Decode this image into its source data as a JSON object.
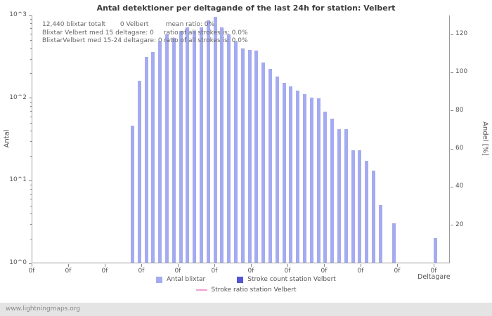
{
  "title": "Antal detektioner per deltagande of the last 24h for station: Velbert",
  "watermark": "www.lightningmaps.org",
  "axes": {
    "left_label": "Antal",
    "right_label": "Andel [%]",
    "x_label": "Deltagare",
    "left_ticks": [
      "10^0",
      "10^1",
      "10^2",
      "10^3"
    ],
    "right_ticks": [
      20,
      40,
      60,
      80,
      100,
      120
    ],
    "x_tick_label": "0f",
    "x_tick_count": 12
  },
  "annotation": {
    "l1a": "12,440 blixtar totalt",
    "l1b": "0 Velbert",
    "l1c": "mean ratio: 0%",
    "l2a": "Blixtar Velbert med 15 deltagare: 0",
    "l2b": "ratio of all strokes is: 0.0%",
    "l3a": "BlixtarVelbert med 15-24 deltagare: 0",
    "l3b": "ratio of all strokes is: 0.0%"
  },
  "legend": {
    "items": [
      {
        "label": "Antal blixtar",
        "color": "#a5abf0",
        "shape": "square"
      },
      {
        "label": "Stroke count station Velbert",
        "color": "#5156d4",
        "shape": "square"
      },
      {
        "label": "Stroke ratio station Velbert",
        "color": "#f0a0d0",
        "shape": "line"
      }
    ]
  },
  "chart_data": {
    "type": "bar",
    "title": "Antal detektioner per deltagande of the last 24h for station: Velbert",
    "xlabel": "Deltagare",
    "ylabel": "Antal",
    "y2label": "Andel [%]",
    "y_scale": "log",
    "ylim": [
      1,
      1000
    ],
    "y2lim": [
      0,
      130
    ],
    "grid": false,
    "legend_position": "bottom",
    "series": [
      {
        "name": "Antal blixtar",
        "color": "#a5abf0",
        "values": [
          45,
          160,
          310,
          355,
          475,
          575,
          525,
          635,
          700,
          635,
          700,
          855,
          940,
          700,
          575,
          475,
          390,
          375,
          370,
          265,
          220,
          180,
          150,
          135,
          120,
          110,
          100,
          97,
          67,
          55,
          41,
          41,
          23,
          23,
          17,
          13,
          5,
          0,
          3,
          0,
          0,
          0,
          0,
          0,
          2
        ]
      },
      {
        "name": "Stroke count station Velbert",
        "color": "#5156d4",
        "values_all": 0
      },
      {
        "name": "Stroke ratio station Velbert",
        "color": "#f0a0d0",
        "render": "line",
        "values_all": 0
      }
    ]
  }
}
